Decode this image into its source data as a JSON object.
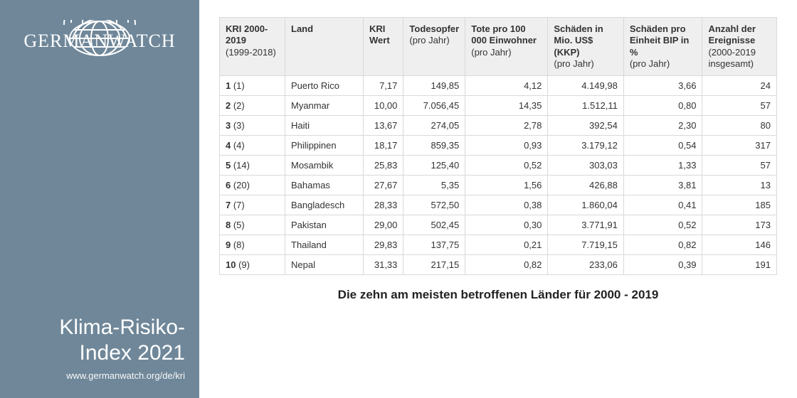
{
  "sidebar": {
    "brand": "GERMANWATCH",
    "title_line1": "Klima-Risiko-",
    "title_line2": "Index 2021",
    "url": "www.germanwatch.org/de/kri",
    "bg_color": "#6f8799"
  },
  "table": {
    "columns": [
      {
        "key": "rank",
        "label_main": "KRI 2000-2019",
        "label_sub": "(1999-2018)",
        "align": "left",
        "width": 92
      },
      {
        "key": "land",
        "label_main": "Land",
        "label_sub": "",
        "align": "left",
        "width": 110
      },
      {
        "key": "wert",
        "label_main": "KRI Wert",
        "label_sub": "",
        "align": "right"
      },
      {
        "key": "tote",
        "label_main": "Todesopfer",
        "label_sub": "(pro Jahr)",
        "align": "right"
      },
      {
        "key": "tote100k",
        "label_main": "Tote pro 100 000 Einwohner",
        "label_sub": "(pro Jahr)",
        "align": "right"
      },
      {
        "key": "schaden",
        "label_main": "Schäden in Mio. US$ (KKP)",
        "label_sub": "(pro Jahr)",
        "align": "right"
      },
      {
        "key": "bip",
        "label_main": "Schäden pro Einheit BIP in %",
        "label_sub": "(pro Jahr)",
        "align": "right"
      },
      {
        "key": "ereig",
        "label_main": "Anzahl der Ereignisse",
        "label_sub": "(2000-2019 insgesamt)",
        "align": "right"
      }
    ],
    "rows": [
      {
        "rank": "1",
        "prev": "1",
        "land": "Puerto Rico",
        "wert": "7,17",
        "tote": "149,85",
        "tote100k": "4,12",
        "schaden": "4.149,98",
        "bip": "3,66",
        "ereig": "24"
      },
      {
        "rank": "2",
        "prev": "2",
        "land": "Myanmar",
        "wert": "10,00",
        "tote": "7.056,45",
        "tote100k": "14,35",
        "schaden": "1.512,11",
        "bip": "0,80",
        "ereig": "57"
      },
      {
        "rank": "3",
        "prev": "3",
        "land": "Haiti",
        "wert": "13,67",
        "tote": "274,05",
        "tote100k": "2,78",
        "schaden": "392,54",
        "bip": "2,30",
        "ereig": "80"
      },
      {
        "rank": "4",
        "prev": "4",
        "land": "Philippinen",
        "wert": "18,17",
        "tote": "859,35",
        "tote100k": "0,93",
        "schaden": "3.179,12",
        "bip": "0,54",
        "ereig": "317"
      },
      {
        "rank": "5",
        "prev": "14",
        "land": "Mosambik",
        "wert": "25,83",
        "tote": "125,40",
        "tote100k": "0,52",
        "schaden": "303,03",
        "bip": "1,33",
        "ereig": "57"
      },
      {
        "rank": "6",
        "prev": "20",
        "land": "Bahamas",
        "wert": "27,67",
        "tote": "5,35",
        "tote100k": "1,56",
        "schaden": "426,88",
        "bip": "3,81",
        "ereig": "13"
      },
      {
        "rank": "7",
        "prev": "7",
        "land": "Bangladesch",
        "wert": "28,33",
        "tote": "572,50",
        "tote100k": "0,38",
        "schaden": "1.860,04",
        "bip": "0,41",
        "ereig": "185"
      },
      {
        "rank": "8",
        "prev": "5",
        "land": "Pakistan",
        "wert": "29,00",
        "tote": "502,45",
        "tote100k": "0,30",
        "schaden": "3.771,91",
        "bip": "0,52",
        "ereig": "173"
      },
      {
        "rank": "9",
        "prev": "8",
        "land": "Thailand",
        "wert": "29,83",
        "tote": "137,75",
        "tote100k": "0,21",
        "schaden": "7.719,15",
        "bip": "0,82",
        "ereig": "146"
      },
      {
        "rank": "10",
        "prev": "9",
        "land": "Nepal",
        "wert": "31,33",
        "tote": "217,15",
        "tote100k": "0,82",
        "schaden": "233,06",
        "bip": "0,39",
        "ereig": "191"
      }
    ],
    "header_bg": "#efefef",
    "border_color": "#d9d9d9"
  },
  "caption": "Die zehn am meisten betroffenen Länder für 2000 - 2019"
}
